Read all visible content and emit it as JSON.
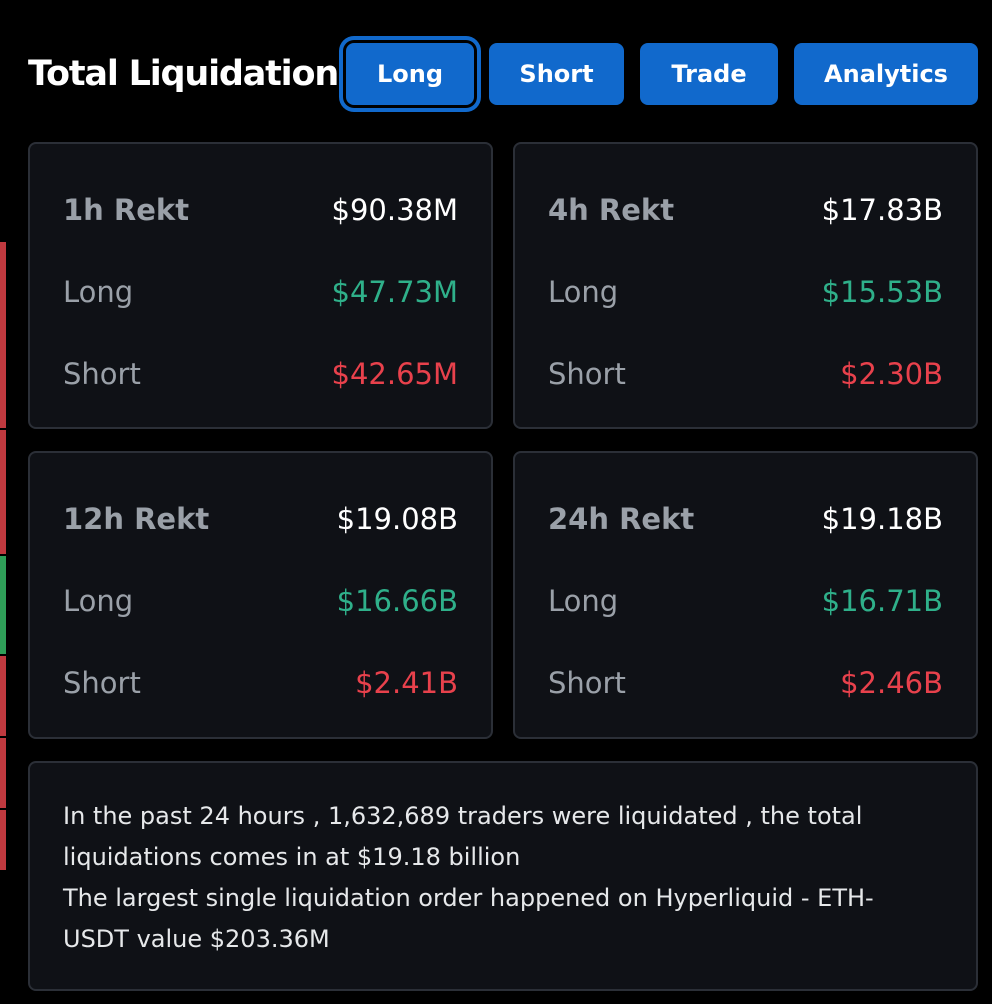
{
  "header": {
    "title": "Total Liquidations",
    "buttons": {
      "long": "Long",
      "short": "Short",
      "trade": "Trade",
      "analytics": "Analytics"
    }
  },
  "cards": [
    {
      "label": "1h Rekt",
      "total": "$90.38M",
      "long_label": "Long",
      "long_value": "$47.73M",
      "short_label": "Short",
      "short_value": "$42.65M"
    },
    {
      "label": "4h Rekt",
      "total": "$17.83B",
      "long_label": "Long",
      "long_value": "$15.53B",
      "short_label": "Short",
      "short_value": "$2.30B"
    },
    {
      "label": "12h Rekt",
      "total": "$19.08B",
      "long_label": "Long",
      "long_value": "$16.66B",
      "short_label": "Short",
      "short_value": "$2.41B"
    },
    {
      "label": "24h Rekt",
      "total": "$19.18B",
      "long_label": "Long",
      "long_value": "$16.71B",
      "short_label": "Short",
      "short_value": "$2.46B"
    }
  ],
  "summary": {
    "line1": "In the past 24 hours , 1,632,689 traders were liquidated , the total liquidations comes in at $19.18 billion",
    "line2": "The largest single liquidation order happened on Hyperliquid - ETH-USDT value $203.36M"
  },
  "colors": {
    "accent": "#1169cc",
    "long": "#2fb08a",
    "short": "#e8414c",
    "card_bg": "#0f1116",
    "page_bg": "#000000"
  }
}
